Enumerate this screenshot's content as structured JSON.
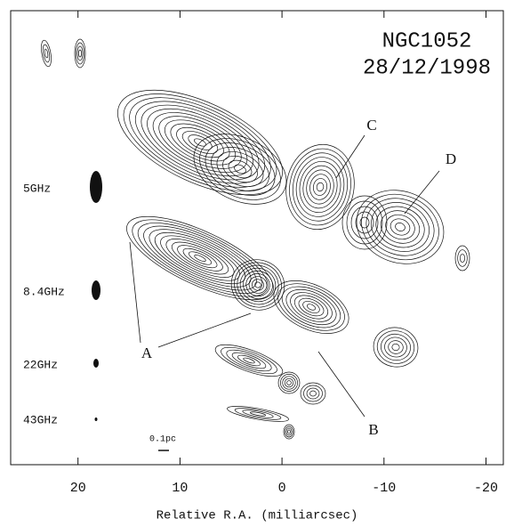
{
  "chart_data": {
    "type": "contour",
    "title": "NGC1052",
    "subtitle": "28/12/1998",
    "xlabel": "Relative R.A. (milliarcsec)",
    "xlim": [
      26.6,
      -21.7
    ],
    "xticks": [
      20,
      10,
      0,
      -10,
      -20
    ],
    "bands": [
      "5GHz",
      "8.4GHz",
      "22GHz",
      "43GHz"
    ],
    "scale_bar": "0.1pc",
    "annotations": [
      "A",
      "B",
      "C",
      "D"
    ]
  }
}
